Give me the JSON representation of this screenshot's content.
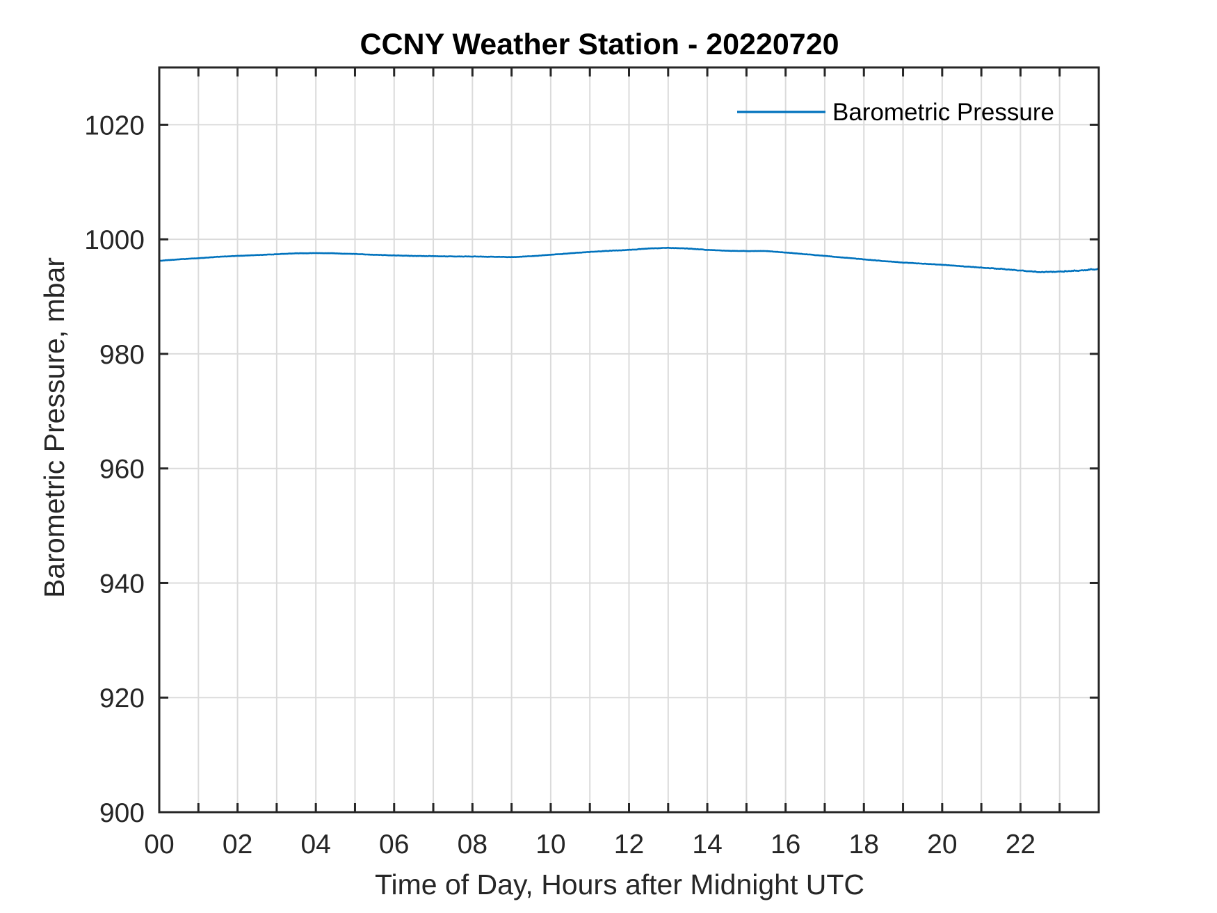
{
  "chart_data": {
    "type": "line",
    "title": "CCNY Weather Station - 20220720",
    "xlabel": "Time of Day, Hours after Midnight UTC",
    "ylabel": "Barometric Pressure, mbar",
    "xlim": [
      0,
      24
    ],
    "ylim": [
      900,
      1030
    ],
    "grid": true,
    "xtick_interval_hours": 1,
    "xtick_label_hours": [
      0,
      2,
      4,
      6,
      8,
      10,
      12,
      14,
      16,
      18,
      20,
      22
    ],
    "xtick_labels": [
      "00",
      "02",
      "04",
      "06",
      "08",
      "10",
      "12",
      "14",
      "16",
      "18",
      "20",
      "22"
    ],
    "ytick_values": [
      900,
      920,
      940,
      960,
      980,
      1000,
      1020
    ],
    "ytick_labels": [
      "900",
      "920",
      "940",
      "960",
      "980",
      "1000",
      "1020"
    ],
    "legend": {
      "position": "northeast",
      "entries": [
        {
          "label": "Barometric Pressure",
          "color": "#0072BD"
        }
      ]
    },
    "colors": {
      "line": "#0072BD",
      "axis": "#262626",
      "grid": "#dbdbdb",
      "background": "#ffffff"
    },
    "series": [
      {
        "name": "Barometric Pressure",
        "color": "#0072BD",
        "x_hours": [
          0,
          0.5,
          1,
          1.5,
          2,
          2.5,
          3,
          3.5,
          4,
          4.5,
          5,
          5.5,
          6,
          6.5,
          7,
          7.5,
          8,
          8.5,
          9,
          9.5,
          10,
          10.5,
          11,
          11.5,
          12,
          12.5,
          13,
          13.5,
          14,
          14.5,
          15,
          15.5,
          16,
          16.5,
          17,
          17.5,
          18,
          18.5,
          19,
          19.5,
          20,
          20.5,
          21,
          21.5,
          22,
          22.5,
          23,
          23.5,
          24
        ],
        "y_mbar": [
          996.25,
          996.5,
          996.7,
          996.95,
          997.1,
          997.25,
          997.4,
          997.55,
          997.6,
          997.55,
          997.45,
          997.3,
          997.2,
          997.1,
          997.05,
          997.0,
          997.0,
          996.95,
          996.9,
          997.05,
          997.3,
          997.55,
          997.8,
          998.0,
          998.15,
          998.4,
          998.5,
          998.4,
          998.15,
          998.0,
          997.95,
          997.95,
          997.7,
          997.4,
          997.1,
          996.8,
          996.5,
          996.2,
          995.95,
          995.75,
          995.55,
          995.3,
          995.05,
          994.85,
          994.55,
          994.3,
          994.35,
          994.55,
          994.8
        ]
      }
    ],
    "noise_mbar": {
      "base": 0.05,
      "late": 0.17,
      "late_start_hour": 20.5,
      "late_ramp_hours": 2.5
    }
  }
}
